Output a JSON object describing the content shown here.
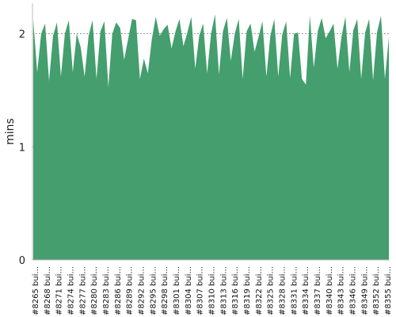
{
  "chart_data": {
    "type": "area",
    "ylabel": "mins",
    "xlabel": "",
    "title": "",
    "ylim": [
      0,
      2.27
    ],
    "yticks": [
      0,
      1,
      2
    ],
    "grid": "horizontal-dashed",
    "color": "#449e6e",
    "x_tick_labels": [
      "#8265 bui...",
      "#8268 bui...",
      "#8271 bui...",
      "#8274 bui...",
      "#8277 bui...",
      "#8280 bui...",
      "#8283 bui...",
      "#8286 bui...",
      "#8289 bui...",
      "#8292 bui...",
      "#8295 bui...",
      "#8298 bui...",
      "#8301 bui...",
      "#8304 bui...",
      "#8307 bui...",
      "#8310 bui...",
      "#8313 bui...",
      "#8316 bui...",
      "#8319 bui...",
      "#8322 bui...",
      "#8325 bui...",
      "#8328 bui...",
      "#8331 bui...",
      "#8334 bui...",
      "#8337 bui...",
      "#8340 bui...",
      "#8343 bui...",
      "#8346 bui...",
      "#8349 bui...",
      "#8352 bui...",
      "#8355 bui..."
    ],
    "series": [
      {
        "values": [
          2.12,
          1.66,
          2.0,
          2.09,
          1.58,
          1.98,
          2.1,
          1.62,
          2.0,
          2.12,
          1.66,
          2.0,
          1.88,
          1.62,
          1.98,
          2.12,
          1.6,
          2.02,
          2.11,
          1.53,
          2.0,
          2.1,
          2.05,
          1.77,
          1.95,
          2.13,
          2.12,
          1.6,
          1.78,
          1.65,
          1.95,
          2.15,
          1.98,
          2.04,
          2.08,
          1.87,
          2.02,
          2.13,
          1.89,
          2.01,
          2.15,
          1.69,
          1.98,
          2.09,
          1.65,
          2.0,
          2.17,
          1.64,
          2.02,
          2.14,
          1.76,
          2.0,
          2.13,
          1.6,
          2.02,
          2.09,
          1.84,
          1.97,
          2.11,
          1.62,
          1.98,
          2.13,
          1.62,
          1.99,
          2.11,
          1.61,
          2.0,
          2.01,
          1.6,
          1.55,
          2.16,
          1.7,
          2.02,
          2.14,
          1.96,
          2.02,
          2.09,
          1.69,
          1.97,
          2.15,
          1.66,
          2.03,
          2.13,
          1.6,
          2.01,
          2.13,
          1.59,
          2.01,
          2.16,
          1.6,
          1.97
        ]
      }
    ]
  }
}
